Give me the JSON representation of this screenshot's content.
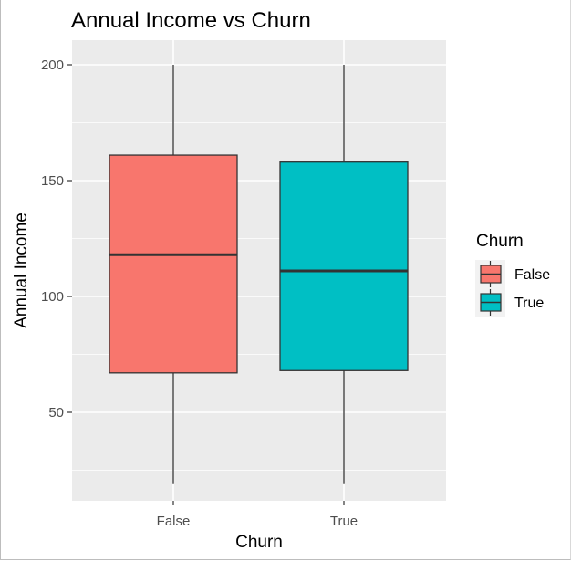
{
  "chart_data": {
    "type": "box",
    "title": "Annual Income vs Churn",
    "xlabel": "Churn",
    "ylabel": "Annual Income",
    "categories": [
      "False",
      "True"
    ],
    "ylim": [
      11.2,
      205
    ],
    "yticks": [
      50,
      100,
      150,
      200
    ],
    "grid": true,
    "legend": {
      "title": "Churn",
      "placement": "right",
      "entries": [
        {
          "label": "False",
          "color": "#F8766D"
        },
        {
          "label": "True",
          "color": "#00BFC4"
        }
      ]
    },
    "boxes": [
      {
        "category": "False",
        "min": 19,
        "q1": 67,
        "median": 118,
        "q3": 161,
        "max": 200,
        "color": "#F8766D"
      },
      {
        "category": "True",
        "min": 19,
        "q1": 68,
        "median": 111,
        "q3": 158,
        "max": 200,
        "color": "#00BFC4"
      }
    ]
  }
}
